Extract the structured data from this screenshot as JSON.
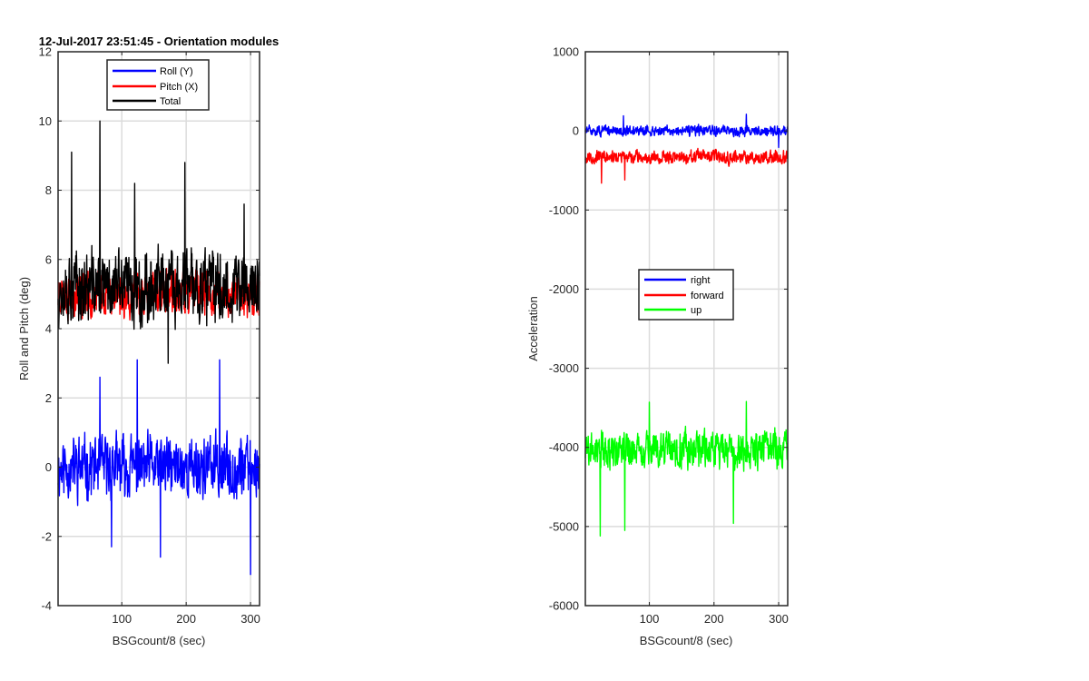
{
  "chart_data": [
    {
      "type": "line",
      "title": "12-Jul-2017 23:51:45 - Orientation modules",
      "xlabel": "BSGcount/8 (sec)",
      "ylabel": "Roll and Pitch (deg)",
      "xlim": [
        1,
        314
      ],
      "ylim": [
        -4,
        12
      ],
      "xticks": [
        100,
        200,
        300
      ],
      "yticks": [
        -4,
        -2,
        0,
        2,
        4,
        6,
        8,
        10,
        12
      ],
      "grid": true,
      "legend_position": "top-center",
      "series": [
        {
          "name": "Roll (Y)",
          "color": "#0000ff",
          "generator": {
            "mean": 0.0,
            "amplitude": 1.2,
            "min": -3.1,
            "max": 3.1,
            "seed": 11
          },
          "peaks": [
            {
              "x": 66,
              "y": 2.6
            },
            {
              "x": 124,
              "y": 3.1
            },
            {
              "x": 252,
              "y": 3.1
            },
            {
              "x": 300,
              "y": -3.1
            },
            {
              "x": 160,
              "y": -2.6
            },
            {
              "x": 84,
              "y": -2.3
            }
          ]
        },
        {
          "name": "Pitch (X)",
          "color": "#ff0000",
          "generator": {
            "mean": 5.0,
            "amplitude": 0.9,
            "min": 2.9,
            "max": 7.0,
            "seed": 23
          },
          "peaks": []
        },
        {
          "name": "Total",
          "color": "#000000",
          "generator": {
            "mean": 5.2,
            "amplitude": 1.4,
            "min": 2.9,
            "max": 10.0,
            "seed": 37
          },
          "peaks": [
            {
              "x": 66,
              "y": 10.0
            },
            {
              "x": 198,
              "y": 8.8
            },
            {
              "x": 22,
              "y": 9.1
            },
            {
              "x": 120,
              "y": 8.2
            },
            {
              "x": 290,
              "y": 7.6
            },
            {
              "x": 172,
              "y": 3.0
            }
          ]
        }
      ]
    },
    {
      "type": "line",
      "title": "",
      "xlabel": "BSGcount/8 (sec)",
      "ylabel": "Acceleration",
      "xlim": [
        1,
        314
      ],
      "ylim": [
        -6000,
        1000
      ],
      "xticks": [
        100,
        200,
        300
      ],
      "yticks": [
        -6000,
        -5000,
        -4000,
        -3000,
        -2000,
        -1000,
        0,
        1000
      ],
      "grid": true,
      "legend_position": "center",
      "series": [
        {
          "name": "right",
          "color": "#0000ff",
          "generator": {
            "mean": 0,
            "amplitude": 90,
            "min": -220,
            "max": 210,
            "seed": 51
          },
          "peaks": [
            {
              "x": 250,
              "y": 210
            },
            {
              "x": 60,
              "y": 190
            },
            {
              "x": 300,
              "y": -210
            }
          ]
        },
        {
          "name": "forward",
          "color": "#ff0000",
          "generator": {
            "mean": -330,
            "amplitude": 110,
            "min": -660,
            "max": -150,
            "seed": 67
          },
          "peaks": [
            {
              "x": 26,
              "y": -660
            },
            {
              "x": 62,
              "y": -620
            }
          ]
        },
        {
          "name": "up",
          "color": "#00ff00",
          "generator": {
            "mean": -4030,
            "amplitude": 330,
            "min": -5120,
            "max": -3420,
            "seed": 89
          },
          "peaks": [
            {
              "x": 24,
              "y": -5120
            },
            {
              "x": 62,
              "y": -5050
            },
            {
              "x": 100,
              "y": -3430
            },
            {
              "x": 250,
              "y": -3420
            },
            {
              "x": 230,
              "y": -4960
            }
          ]
        }
      ]
    }
  ]
}
